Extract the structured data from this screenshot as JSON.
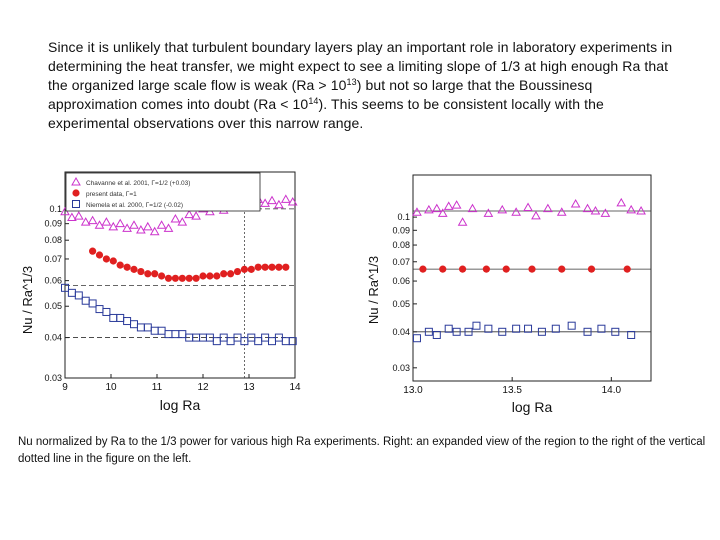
{
  "paragraph": {
    "part1": "Since it is unlikely that turbulent boundary layers play an important role in laboratory experiments in determining the heat transfer, we might expect to see a limiting slope of 1/3 at high enough Ra that the organized large scale flow is weak (Ra > 10",
    "sup1": "13",
    "part2": ") but not so large that the Boussinesq approximation comes into doubt (Ra < 10",
    "sup2": "14",
    "part3": ").  This seems to be consistent locally with the experimental observations over this narrow range."
  },
  "caption": "Nu normalized  by Ra to the 1/3 power for various high Ra experiments.  Right: an expanded view of the region to the right of the vertical dotted line in the figure on the left.",
  "colors": {
    "triangle": "#cc33cc",
    "dot": "#e02020",
    "square": "#2a3a9a"
  },
  "chart_data": [
    {
      "type": "scatter",
      "xlabel": "log Ra",
      "ylabel": "Nu / Ra^1/3",
      "xlim": [
        9,
        14
      ],
      "ylim": [
        0.03,
        0.13
      ],
      "y_scale": "log",
      "xticks": [
        "9",
        "10",
        "11",
        "12",
        "13",
        "14"
      ],
      "yticks": [
        "0.1",
        "0.09",
        "0.08",
        "0.07",
        "0.06",
        "0.05",
        "0.04",
        "0.03"
      ],
      "legend": {
        "placement": "top-left",
        "entries": [
          "Chavanne et al. 2001, Γ=1/2 (+0.03)",
          "present data, Γ=1",
          "Niemela et al. 2000, Γ=1/2 (-0.02)"
        ]
      },
      "reference_lines_y": [
        0.1,
        0.058,
        0.04
      ],
      "annotations": [
        {
          "type": "vertical-dotted-line",
          "x": 12.9
        }
      ],
      "series": [
        {
          "name": "Chavanne et al. 2001, Γ=1/2 (+0.03)",
          "marker": "triangle-open",
          "x": [
            9.0,
            9.15,
            9.3,
            9.45,
            9.6,
            9.75,
            9.9,
            10.05,
            10.2,
            10.35,
            10.5,
            10.65,
            10.8,
            10.95,
            11.1,
            11.25,
            11.4,
            11.55,
            11.7,
            11.85,
            12.0,
            12.15,
            12.3,
            12.45,
            12.6,
            12.75,
            12.9,
            13.05,
            13.2,
            13.35,
            13.5,
            13.65,
            13.8,
            13.95
          ],
          "y": [
            0.098,
            0.094,
            0.095,
            0.091,
            0.092,
            0.089,
            0.091,
            0.088,
            0.09,
            0.087,
            0.089,
            0.086,
            0.088,
            0.085,
            0.089,
            0.087,
            0.093,
            0.091,
            0.096,
            0.095,
            0.1,
            0.098,
            0.102,
            0.099,
            0.104,
            0.101,
            0.106,
            0.103,
            0.107,
            0.104,
            0.106,
            0.103,
            0.107,
            0.105
          ]
        },
        {
          "name": "present data, Γ=1",
          "marker": "circle-filled",
          "x": [
            9.6,
            9.75,
            9.9,
            10.05,
            10.2,
            10.35,
            10.5,
            10.65,
            10.8,
            10.95,
            11.1,
            11.25,
            11.4,
            11.55,
            11.7,
            11.85,
            12.0,
            12.15,
            12.3,
            12.45,
            12.6,
            12.75,
            12.9,
            13.05,
            13.2,
            13.35,
            13.5,
            13.65,
            13.8
          ],
          "y": [
            0.074,
            0.072,
            0.07,
            0.069,
            0.067,
            0.066,
            0.065,
            0.064,
            0.063,
            0.063,
            0.062,
            0.061,
            0.061,
            0.061,
            0.061,
            0.061,
            0.062,
            0.062,
            0.062,
            0.063,
            0.063,
            0.064,
            0.065,
            0.065,
            0.066,
            0.066,
            0.066,
            0.066,
            0.066
          ]
        },
        {
          "name": "Niemela et al. 2000, Γ=1/2 (-0.02)",
          "marker": "square-open",
          "x": [
            9.0,
            9.15,
            9.3,
            9.45,
            9.6,
            9.75,
            9.9,
            10.05,
            10.2,
            10.35,
            10.5,
            10.65,
            10.8,
            10.95,
            11.1,
            11.25,
            11.4,
            11.55,
            11.7,
            11.85,
            12.0,
            12.15,
            12.3,
            12.45,
            12.6,
            12.75,
            12.9,
            13.05,
            13.2,
            13.35,
            13.5,
            13.65,
            13.8,
            13.95
          ],
          "y": [
            0.057,
            0.055,
            0.054,
            0.052,
            0.051,
            0.049,
            0.048,
            0.046,
            0.046,
            0.045,
            0.044,
            0.043,
            0.043,
            0.042,
            0.042,
            0.041,
            0.041,
            0.041,
            0.04,
            0.04,
            0.04,
            0.04,
            0.039,
            0.04,
            0.039,
            0.04,
            0.039,
            0.04,
            0.039,
            0.04,
            0.039,
            0.04,
            0.039,
            0.039
          ]
        }
      ]
    },
    {
      "type": "scatter",
      "xlabel": "log Ra",
      "ylabel": "Nu / Ra^1/3",
      "xlim": [
        13.0,
        14.2
      ],
      "ylim": [
        0.027,
        0.14
      ],
      "y_scale": "log",
      "xticks": [
        "13.0",
        "13.5",
        "14.0"
      ],
      "yticks": [
        "0.1",
        "0.09",
        "0.08",
        "0.07",
        "0.06",
        "0.05",
        "0.04",
        "0.03"
      ],
      "reference_lines_y": [
        0.105,
        0.066,
        0.04
      ],
      "series": [
        {
          "name": "triangles",
          "marker": "triangle-open",
          "x": [
            13.02,
            13.08,
            13.12,
            13.15,
            13.18,
            13.22,
            13.25,
            13.3,
            13.38,
            13.45,
            13.52,
            13.58,
            13.62,
            13.68,
            13.75,
            13.82,
            13.88,
            13.92,
            13.97,
            14.05,
            14.1,
            14.15
          ],
          "y": [
            0.104,
            0.106,
            0.107,
            0.103,
            0.109,
            0.11,
            0.096,
            0.107,
            0.103,
            0.106,
            0.104,
            0.108,
            0.101,
            0.107,
            0.104,
            0.111,
            0.107,
            0.105,
            0.103,
            0.112,
            0.106,
            0.105
          ]
        },
        {
          "name": "dots",
          "marker": "circle-filled",
          "x": [
            13.05,
            13.15,
            13.25,
            13.37,
            13.47,
            13.6,
            13.75,
            13.9,
            14.08
          ],
          "y": [
            0.066,
            0.066,
            0.066,
            0.066,
            0.066,
            0.066,
            0.066,
            0.066,
            0.066
          ]
        },
        {
          "name": "squares",
          "marker": "square-open",
          "x": [
            13.02,
            13.08,
            13.12,
            13.18,
            13.22,
            13.28,
            13.32,
            13.38,
            13.45,
            13.52,
            13.58,
            13.65,
            13.72,
            13.8,
            13.88,
            13.95,
            14.02,
            14.1
          ],
          "y": [
            0.038,
            0.04,
            0.039,
            0.041,
            0.04,
            0.04,
            0.042,
            0.041,
            0.04,
            0.041,
            0.041,
            0.04,
            0.041,
            0.042,
            0.04,
            0.041,
            0.04,
            0.039
          ]
        }
      ]
    }
  ]
}
